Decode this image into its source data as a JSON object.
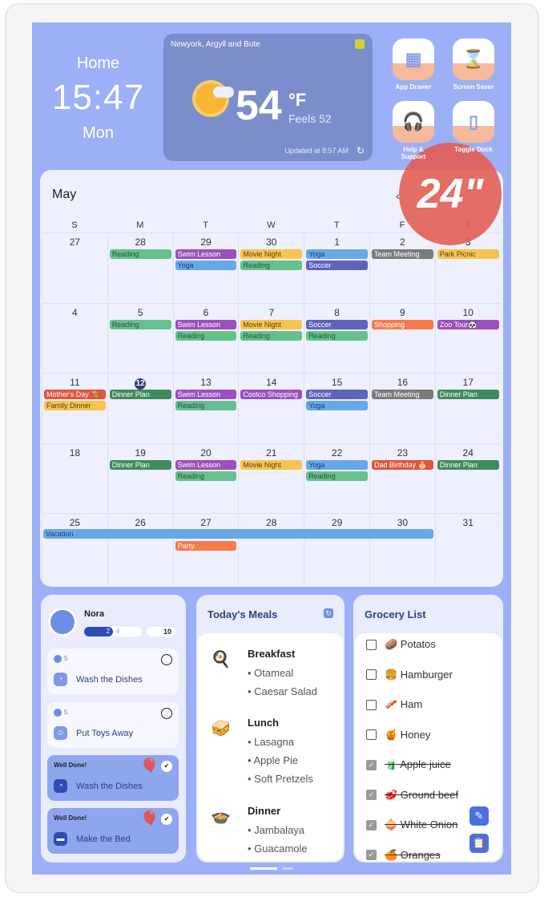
{
  "clock": {
    "label": "Home",
    "time": "15:47",
    "day": "Mon"
  },
  "weather": {
    "location": "Newyork, Argyll and Bute",
    "temp": "54",
    "unit": "°F",
    "feels": "Feels 52",
    "updated": "Updated at 8:57 AM",
    "icon": "partly-sunny-icon"
  },
  "apps": [
    {
      "label": "App Drawer",
      "icon": "grid-icon"
    },
    {
      "label": "Screen Saver",
      "icon": "hourglass-icon"
    },
    {
      "label": "Help & Support",
      "icon": "headset-icon"
    },
    {
      "label": "Toggle Dock",
      "icon": "tablet-icon"
    }
  ],
  "promo": "24\"",
  "calendar": {
    "month": "May",
    "weekdays": [
      "S",
      "M",
      "T",
      "W",
      "T",
      "F",
      "S"
    ],
    "today": 12,
    "colors": {
      "green": "#66c08d",
      "purple": "#9c4fbd",
      "yellow": "#f8c451",
      "blue": "#67a8e8",
      "indigo": "#5f63b9",
      "gray": "#7b7b7b",
      "orange": "#f57a4c",
      "red": "#e0553d",
      "dgreen": "#3f8b5c"
    },
    "weeks": [
      [
        {
          "d": "27",
          "e": []
        },
        {
          "d": "28",
          "e": [
            [
              "Reading",
              "green"
            ]
          ]
        },
        {
          "d": "29",
          "e": [
            [
              "Swim Lesson",
              "purple"
            ],
            [
              "Yoga",
              "blue"
            ]
          ]
        },
        {
          "d": "30",
          "e": [
            [
              "Movie Night",
              "yellow"
            ],
            [
              "Reading",
              "green"
            ]
          ]
        },
        {
          "d": "1",
          "e": [
            [
              "Yoga",
              "blue"
            ],
            [
              "Soccer",
              "indigo"
            ]
          ]
        },
        {
          "d": "2",
          "e": [
            [
              "Team Meeting",
              "gray"
            ]
          ]
        },
        {
          "d": "3",
          "e": [
            [
              "Park Picnic",
              "yellow"
            ]
          ]
        }
      ],
      [
        {
          "d": "4",
          "e": []
        },
        {
          "d": "5",
          "e": [
            [
              "Reading",
              "green"
            ]
          ]
        },
        {
          "d": "6",
          "e": [
            [
              "Swim Lesson",
              "purple"
            ],
            [
              "Reading",
              "green"
            ]
          ]
        },
        {
          "d": "7",
          "e": [
            [
              "Movie Night",
              "yellow"
            ],
            [
              "Reading",
              "green"
            ]
          ]
        },
        {
          "d": "8",
          "e": [
            [
              "Soccer",
              "indigo"
            ],
            [
              "Reading",
              "green"
            ]
          ]
        },
        {
          "d": "9",
          "e": [
            [
              "Shopping",
              "orange"
            ]
          ]
        },
        {
          "d": "10",
          "e": [
            [
              "Zoo Tour🐼",
              "purple"
            ]
          ]
        }
      ],
      [
        {
          "d": "11",
          "e": [
            [
              "Mother's Day 💐",
              "red"
            ],
            [
              "Family Dinner",
              "yellow"
            ]
          ]
        },
        {
          "d": "12",
          "e": [
            [
              "Dinner Plan",
              "dgreen"
            ]
          ]
        },
        {
          "d": "13",
          "e": [
            [
              "Swim Lesson",
              "purple"
            ],
            [
              "Reading",
              "green"
            ]
          ]
        },
        {
          "d": "14",
          "e": [
            [
              "Costco Shopping",
              "purple"
            ]
          ]
        },
        {
          "d": "15",
          "e": [
            [
              "Soccer",
              "indigo"
            ],
            [
              "Yoga",
              "blue"
            ]
          ]
        },
        {
          "d": "16",
          "e": [
            [
              "Team Meeting",
              "gray"
            ]
          ]
        },
        {
          "d": "17",
          "e": [
            [
              "Dinner Plan",
              "dgreen"
            ]
          ]
        }
      ],
      [
        {
          "d": "18",
          "e": []
        },
        {
          "d": "19",
          "e": [
            [
              "Dinner Plan",
              "dgreen"
            ]
          ]
        },
        {
          "d": "20",
          "e": [
            [
              "Swim Lesson",
              "purple"
            ],
            [
              "Reading",
              "green"
            ]
          ]
        },
        {
          "d": "21",
          "e": [
            [
              "Movie Night",
              "yellow"
            ]
          ]
        },
        {
          "d": "22",
          "e": [
            [
              "Yoga",
              "blue"
            ],
            [
              "Reading",
              "green"
            ]
          ]
        },
        {
          "d": "23",
          "e": [
            [
              "Dad Birthday 🎂",
              "red"
            ]
          ]
        },
        {
          "d": "24",
          "e": [
            [
              "Dinner Plan",
              "dgreen"
            ]
          ]
        }
      ],
      [
        {
          "d": "25",
          "e": []
        },
        {
          "d": "26",
          "e": []
        },
        {
          "d": "27",
          "e": [
            null,
            [
              "Party",
              "orange"
            ]
          ]
        },
        {
          "d": "28",
          "e": []
        },
        {
          "d": "29",
          "e": []
        },
        {
          "d": "30",
          "e": []
        },
        {
          "d": "31",
          "e": []
        }
      ]
    ],
    "span_event": {
      "label": "Vacation",
      "color": "blue",
      "week": 4,
      "from_day": "25",
      "to_day": "30"
    }
  },
  "chores": {
    "name": "Nora",
    "progress_done": "2",
    "progress_total": "4",
    "points": "10",
    "items": [
      {
        "status": "todo",
        "points": "5",
        "title": "Wash the Dishes",
        "icon": "dishes-icon"
      },
      {
        "status": "todo",
        "points": "5",
        "title": "Put Toys Away",
        "icon": "teddy-bear-icon"
      },
      {
        "status": "done",
        "badge": "Well Done!",
        "title": "Wash the Dishes",
        "icon": "dishes-icon"
      },
      {
        "status": "done",
        "badge": "Well Done!",
        "title": "Make the Bed",
        "icon": "bed-icon"
      }
    ]
  },
  "meals": {
    "title": "Today's Meals",
    "items": [
      {
        "name": "Breakfast",
        "icon": "🍳",
        "dishes": [
          "• Otameal",
          "• Caesar Salad"
        ]
      },
      {
        "name": "Lunch",
        "icon": "🥪",
        "dishes": [
          "• Lasagna",
          "• Apple Pie",
          "• Soft Pretzels"
        ]
      },
      {
        "name": "Dinner",
        "icon": "🍲",
        "dishes": [
          "• Jambalaya",
          "• Guacamole"
        ]
      }
    ]
  },
  "grocery": {
    "title": "Grocery List",
    "items": [
      {
        "label": "🥔 Potatos",
        "checked": false
      },
      {
        "label": "🍔 Hamburger",
        "checked": false
      },
      {
        "label": "🥓 Ham",
        "checked": false
      },
      {
        "label": "🍯 Honey",
        "checked": false
      },
      {
        "label": "🧃 Apple juice",
        "checked": true
      },
      {
        "label": "🥩 Ground beef",
        "checked": true
      },
      {
        "label": "🧅 White Onion",
        "checked": true
      },
      {
        "label": "🍊 Oranges",
        "checked": true
      }
    ]
  }
}
